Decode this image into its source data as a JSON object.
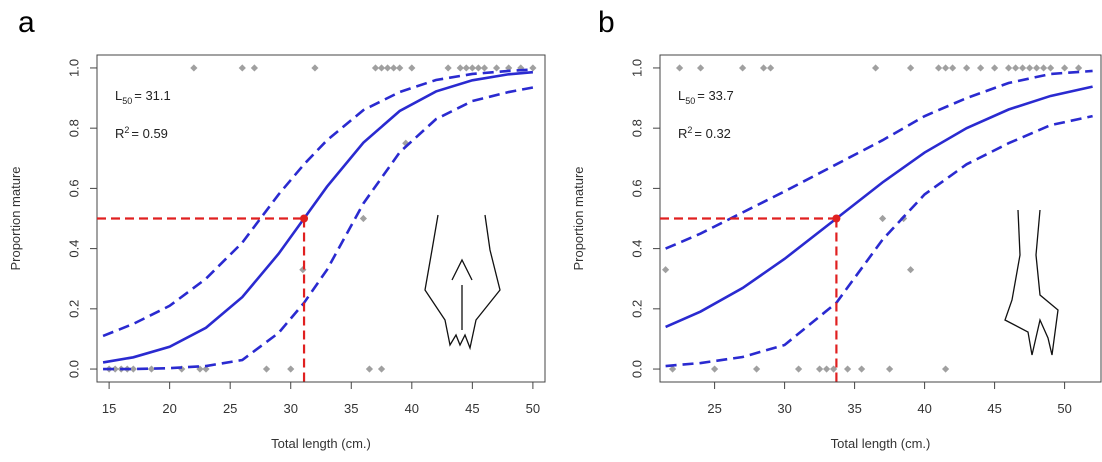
{
  "chart_data": [
    {
      "type": "line",
      "panel_label": "a",
      "xlabel": "Total length (cm.)",
      "ylabel": "Proportion mature",
      "xlim": [
        14.0,
        51.0
      ],
      "ylim": [
        -0.043,
        1.043
      ],
      "xticks": [
        15,
        20,
        25,
        30,
        35,
        40,
        45,
        50
      ],
      "yticks": [
        {
          "value": 0,
          "label": "0.0"
        },
        {
          "value": 0.2,
          "label": "0.2"
        },
        {
          "value": 0.4,
          "label": "0.4"
        },
        {
          "value": 0.6,
          "label": "0.6"
        },
        {
          "value": 0.8,
          "label": "0.8"
        },
        {
          "value": 1,
          "label": "1.0"
        }
      ],
      "annotations": {
        "l50": {
          "base": "L",
          "sub": "50",
          "text": "= 31.1"
        },
        "r2": {
          "base": "R",
          "sup": "2",
          "text": "= 0.59"
        }
      },
      "l50": {
        "x": 31.1,
        "y": 0.5,
        "color": "#e02020"
      },
      "x": [
        14.5,
        17,
        20,
        23,
        26,
        29,
        31.1,
        33,
        36,
        39,
        42,
        45,
        48,
        50
      ],
      "series": [
        {
          "color": "#2a2ad0",
          "dashed": false,
          "values": [
            0.022,
            0.039,
            0.074,
            0.137,
            0.239,
            0.383,
            0.5,
            0.606,
            0.752,
            0.857,
            0.922,
            0.959,
            0.979,
            0.986
          ]
        },
        {
          "color": "#2a2ad0",
          "dashed": true,
          "values": [
            0.11,
            0.15,
            0.21,
            0.3,
            0.42,
            0.58,
            0.68,
            0.76,
            0.86,
            0.92,
            0.96,
            0.98,
            0.99,
            0.995
          ]
        },
        {
          "color": "#2a2ad0",
          "dashed": true,
          "values": [
            0.0,
            0.0,
            0.003,
            0.01,
            0.03,
            0.12,
            0.22,
            0.33,
            0.55,
            0.72,
            0.83,
            0.89,
            0.92,
            0.935
          ]
        }
      ],
      "points": {
        "color": "#a0a0a0",
        "x": [
          15,
          15.5,
          16,
          16.5,
          17,
          18.5,
          21,
          22.5,
          23,
          28,
          30,
          36.5,
          37.5,
          31,
          36,
          39.5,
          22,
          26,
          27,
          32,
          37,
          37.5,
          38,
          38.5,
          39,
          40,
          43,
          44,
          44.5,
          45,
          45.5,
          46,
          47,
          48,
          49,
          50
        ],
        "y": [
          0,
          0,
          0,
          0,
          0,
          0,
          0,
          0,
          0,
          0,
          0,
          0,
          0,
          0.33,
          0.5,
          0.75,
          1,
          1,
          1,
          1,
          1,
          1,
          1,
          1,
          1,
          1,
          1,
          1,
          1,
          1,
          1,
          1,
          1,
          1,
          1,
          1
        ]
      }
    },
    {
      "type": "line",
      "panel_label": "b",
      "xlabel": "Total length (cm.)",
      "ylabel": "Proportion mature",
      "xlim": [
        21.1,
        52.6
      ],
      "ylim": [
        -0.043,
        1.043
      ],
      "xticks": [
        25,
        30,
        35,
        40,
        45,
        50
      ],
      "yticks": [
        {
          "value": 0,
          "label": "0.0"
        },
        {
          "value": 0.2,
          "label": "0.2"
        },
        {
          "value": 0.4,
          "label": "0.4"
        },
        {
          "value": 0.6,
          "label": "0.6"
        },
        {
          "value": 0.8,
          "label": "0.8"
        },
        {
          "value": 1,
          "label": "1.0"
        }
      ],
      "annotations": {
        "l50": {
          "base": "L",
          "sub": "50",
          "text": "= 33.7"
        },
        "r2": {
          "base": "R",
          "sup": "2",
          "text": "= 0.32"
        }
      },
      "l50": {
        "x": 33.7,
        "y": 0.5,
        "color": "#e02020"
      },
      "x": [
        21.5,
        24,
        27,
        30,
        33.7,
        37,
        40,
        43,
        46,
        49,
        52
      ],
      "series": [
        {
          "color": "#2a2ad0",
          "dashed": false,
          "values": [
            0.14,
            0.191,
            0.269,
            0.366,
            0.5,
            0.62,
            0.719,
            0.8,
            0.862,
            0.907,
            0.938
          ]
        },
        {
          "color": "#2a2ad0",
          "dashed": true,
          "values": [
            0.4,
            0.45,
            0.52,
            0.59,
            0.68,
            0.76,
            0.84,
            0.9,
            0.95,
            0.98,
            0.99
          ]
        },
        {
          "color": "#2a2ad0",
          "dashed": true,
          "values": [
            0.01,
            0.02,
            0.04,
            0.08,
            0.22,
            0.43,
            0.58,
            0.68,
            0.75,
            0.81,
            0.84
          ]
        }
      ],
      "points": {
        "color": "#a0a0a0",
        "x": [
          22,
          25,
          28,
          31,
          32.5,
          33,
          33.5,
          34.5,
          35.5,
          37.5,
          41.5,
          21.5,
          37,
          38.5,
          39,
          22.5,
          24,
          27,
          28.5,
          29,
          36.5,
          39,
          41,
          41.5,
          42,
          43,
          44,
          45,
          46,
          46.5,
          47,
          47.5,
          48,
          48.5,
          49,
          50,
          51
        ],
        "y": [
          0,
          0,
          0,
          0,
          0,
          0,
          0,
          0,
          0,
          0,
          0,
          0.33,
          0.5,
          0.5,
          0.33,
          1,
          1,
          1,
          1,
          1,
          1,
          1,
          1,
          1,
          1,
          1,
          1,
          1,
          1,
          1,
          1,
          1,
          1,
          1,
          1,
          1,
          1
        ]
      }
    }
  ]
}
